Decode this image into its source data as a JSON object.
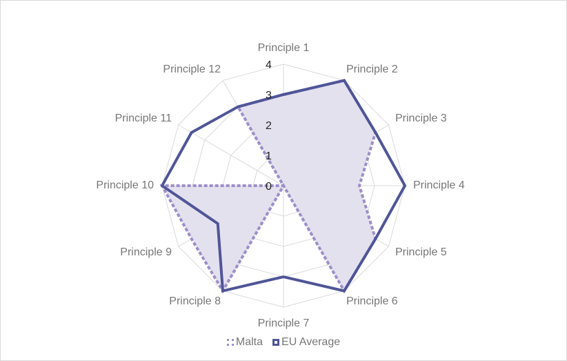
{
  "chart_data": {
    "type": "radar",
    "categories": [
      "Principle 1",
      "Principle 2",
      "Principle 3",
      "Principle 4",
      "Principle 5",
      "Principle 6",
      "Principle 7",
      "Principle 8",
      "Principle 9",
      "Principle 10",
      "Principle 11",
      "Principle 12"
    ],
    "series": [
      {
        "name": "Malta",
        "values": [
          3,
          4,
          3.5,
          2.5,
          3.5,
          4,
          0,
          4,
          3.5,
          4,
          0,
          3
        ],
        "color": "#9C8FC9",
        "fill": "#E4E1EE",
        "style": "dotted"
      },
      {
        "name": "EU Average",
        "values": [
          3,
          4,
          3.5,
          4,
          3.5,
          4,
          3,
          4,
          2.5,
          4,
          3.5,
          3
        ],
        "color": "#4F5597",
        "style": "solid"
      }
    ],
    "rlim": [
      0,
      4
    ],
    "ticks": [
      "0",
      "1",
      "2",
      "3",
      "4"
    ],
    "grid": true,
    "legend": "bottom",
    "title": ""
  }
}
